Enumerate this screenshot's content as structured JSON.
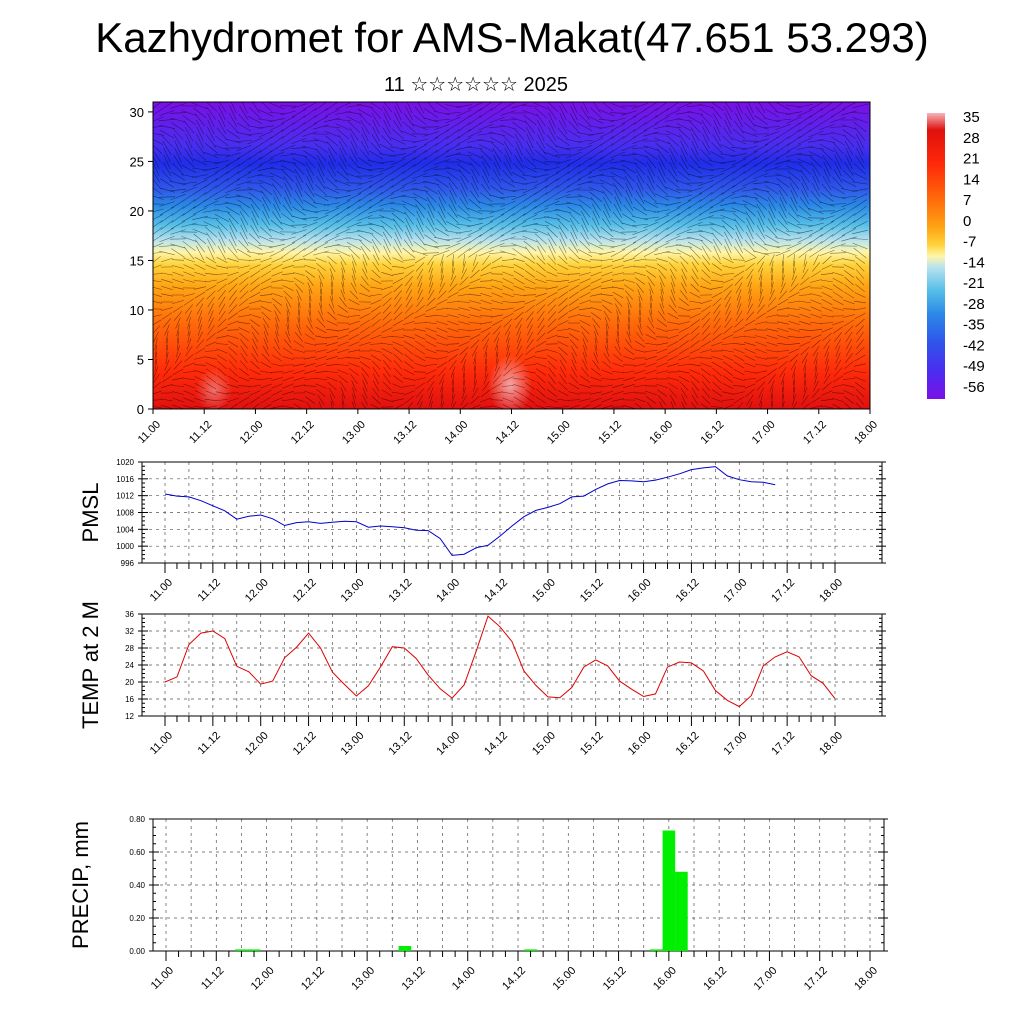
{
  "page": {
    "title": "Kazhydromet for AMS-Makat(47.651 53.293)",
    "subtitle": "11 ☆☆☆☆☆☆ 2025"
  },
  "colors": {
    "pmsl_line": "#0000cc",
    "temp_line": "#dd0000",
    "precip_bar": "#00ee00",
    "grid": "#555555",
    "colormap": [
      "#7a10e6",
      "#4a2ef0",
      "#2f55ea",
      "#2c8be6",
      "#56bfe8",
      "#b8e2ee",
      "#fff6a8",
      "#ffd23a",
      "#ffa414",
      "#ff6a0a",
      "#ff2a0a",
      "#e0100c",
      "#f4b4b8"
    ]
  },
  "chart_data": [
    {
      "id": "cross-section",
      "type": "heatmap",
      "title": "",
      "xlabel": "",
      "ylabel": "",
      "x_ticks": [
        "11.00",
        "11.12",
        "12.00",
        "12.12",
        "13.00",
        "13.12",
        "14.00",
        "14.12",
        "15.00",
        "15.12",
        "16.00",
        "16.12",
        "17.00",
        "17.12",
        "18.00"
      ],
      "y_ticks": [
        0,
        5,
        10,
        15,
        20,
        25,
        30
      ],
      "ylim": [
        0,
        31
      ],
      "overlay": "wind vectors",
      "colorbar": {
        "labels": [
          "35",
          "28",
          "21",
          "14",
          "7",
          "0",
          "-7",
          "-14",
          "-21",
          "-28",
          "-35",
          "-42",
          "-49",
          "-56"
        ],
        "range": [
          -60,
          38
        ]
      }
    },
    {
      "id": "pmsl",
      "type": "line",
      "ylabel": "PMSL",
      "ylim": [
        996,
        1020
      ],
      "y_ticks": [
        "996",
        "1000",
        "1004",
        "1008",
        "1012",
        "1016",
        "1020"
      ],
      "x_ticks": [
        "11.00",
        "11.12",
        "12.00",
        "12.12",
        "13.00",
        "13.12",
        "14.00",
        "14.12",
        "15.00",
        "15.12",
        "16.00",
        "16.12",
        "17.00",
        "17.12",
        "18.00"
      ],
      "x_start": 0,
      "x_step_hours": 3,
      "values": [
        1012.4,
        1011.9,
        1011.7,
        1010.8,
        1009.6,
        1008.4,
        1006.4,
        1007.1,
        1007.4,
        1006.5,
        1004.9,
        1005.6,
        1005.8,
        1005.4,
        1005.7,
        1005.9,
        1005.8,
        1004.5,
        1004.8,
        1004.6,
        1004.4,
        1003.8,
        1003.7,
        1001.8,
        997.8,
        998.1,
        999.6,
        1000.2,
        1002.4,
        1004.8,
        1007.0,
        1008.5,
        1009.2,
        1010.1,
        1011.7,
        1011.9,
        1013.5,
        1014.8,
        1015.6,
        1015.5,
        1015.3,
        1015.7,
        1016.4,
        1017.2,
        1018.2,
        1018.6,
        1018.9,
        1016.7,
        1015.8,
        1015.3,
        1015.2,
        1014.6
      ]
    },
    {
      "id": "temp2m",
      "type": "line",
      "ylabel": "TEMP at 2 M",
      "ylim": [
        12,
        36
      ],
      "y_ticks": [
        "12",
        "16",
        "20",
        "24",
        "28",
        "32",
        "36"
      ],
      "x_ticks": [
        "11.00",
        "11.12",
        "12.00",
        "12.12",
        "13.00",
        "13.12",
        "14.00",
        "14.12",
        "15.00",
        "15.12",
        "16.00",
        "16.12",
        "17.00",
        "17.12",
        "18.00"
      ],
      "x_start": 0,
      "x_step_hours": 3,
      "values": [
        20.0,
        21.2,
        28.8,
        31.5,
        32.0,
        30.2,
        23.7,
        22.4,
        19.5,
        20.2,
        25.7,
        28.2,
        31.5,
        28.0,
        22.3,
        19.4,
        16.7,
        19.1,
        23.5,
        28.3,
        28.0,
        25.5,
        21.6,
        18.4,
        16.2,
        19.3,
        27.2,
        35.5,
        33.0,
        29.5,
        22.6,
        19.2,
        16.5,
        16.3,
        18.7,
        23.5,
        25.2,
        23.8,
        20.2,
        18.3,
        16.6,
        17.2,
        23.5,
        24.7,
        24.5,
        22.6,
        18.0,
        15.7,
        14.2,
        16.8,
        23.8,
        25.9,
        27.1,
        25.9,
        21.5,
        19.7,
        16.1
      ]
    },
    {
      "id": "precip",
      "type": "bar",
      "ylabel": "PRECIP, mm",
      "ylim": [
        0,
        0.8
      ],
      "y_ticks": [
        "0.00",
        "0.20",
        "0.40",
        "0.60",
        "0.80"
      ],
      "x_ticks": [
        "11.00",
        "11.12",
        "12.00",
        "12.12",
        "13.00",
        "13.12",
        "14.00",
        "14.12",
        "15.00",
        "15.12",
        "16.00",
        "16.12",
        "17.00",
        "17.12",
        "18.00"
      ],
      "bars": [
        {
          "hour": 18,
          "value": 0.01
        },
        {
          "hour": 21,
          "value": 0.01
        },
        {
          "hour": 57,
          "value": 0.03
        },
        {
          "hour": 87,
          "value": 0.01
        },
        {
          "hour": 117,
          "value": 0.01
        },
        {
          "hour": 120,
          "value": 0.73
        },
        {
          "hour": 123,
          "value": 0.48
        }
      ]
    }
  ]
}
